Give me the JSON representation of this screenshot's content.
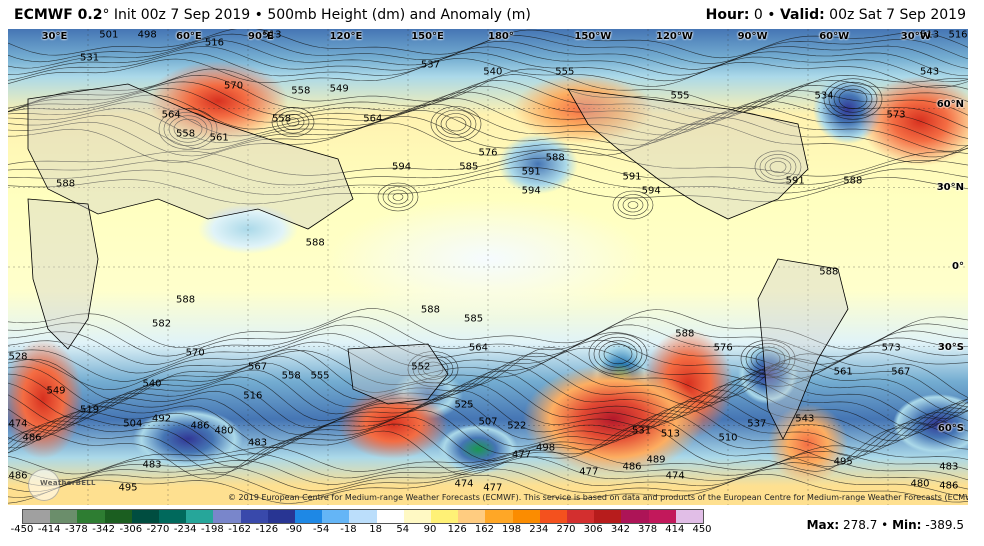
{
  "header": {
    "model": "ECMWF 0.2",
    "degree": "°",
    "init": "Init 00z 7 Sep 2019",
    "bullet": "•",
    "product": "500mb Height (dm) and Anomaly (m)",
    "hour_label": "Hour:",
    "hour_value": "0",
    "valid_label": "Valid:",
    "valid_value": "00z Sat 7 Sep 2019"
  },
  "map": {
    "lon_labels": [
      {
        "text": "30°E",
        "x": 3.5
      },
      {
        "text": "60°E",
        "x": 17.5
      },
      {
        "text": "90°E",
        "x": 25
      },
      {
        "text": "120°E",
        "x": 33.5
      },
      {
        "text": "150°E",
        "x": 42
      },
      {
        "text": "180°",
        "x": 50
      },
      {
        "text": "150°W",
        "x": 59
      },
      {
        "text": "120°W",
        "x": 67.5
      },
      {
        "text": "90°W",
        "x": 76
      },
      {
        "text": "60°W",
        "x": 84.5
      },
      {
        "text": "30°W",
        "x": 93
      }
    ],
    "lat_labels": [
      {
        "text": "60°N",
        "y": 16
      },
      {
        "text": "30°N",
        "y": 33.5
      },
      {
        "text": "0°",
        "y": 50
      },
      {
        "text": "30°S",
        "y": 67
      },
      {
        "text": "60°S",
        "y": 84
      }
    ],
    "contour_labels": [
      {
        "t": "501",
        "x": 10.5,
        "y": 0.5
      },
      {
        "t": "498",
        "x": 14.5,
        "y": 0.5
      },
      {
        "t": "516",
        "x": 21.5,
        "y": 3
      },
      {
        "t": "513",
        "x": 27.5,
        "y": 1
      },
      {
        "t": "531",
        "x": 8.5,
        "y": 6
      },
      {
        "t": "537",
        "x": 44,
        "y": 7.5
      },
      {
        "t": "540",
        "x": 50.5,
        "y": 9
      },
      {
        "t": "555",
        "x": 58,
        "y": 9
      },
      {
        "t": "555",
        "x": 70,
        "y": 14
      },
      {
        "t": "570",
        "x": 23.5,
        "y": 12
      },
      {
        "t": "558",
        "x": 30.5,
        "y": 13
      },
      {
        "t": "549",
        "x": 34.5,
        "y": 12.5
      },
      {
        "t": "564",
        "x": 17,
        "y": 18
      },
      {
        "t": "558",
        "x": 18.5,
        "y": 22
      },
      {
        "t": "561",
        "x": 22,
        "y": 23
      },
      {
        "t": "558",
        "x": 28.5,
        "y": 19
      },
      {
        "t": "564",
        "x": 38,
        "y": 19
      },
      {
        "t": "534",
        "x": 85,
        "y": 14
      },
      {
        "t": "543",
        "x": 96,
        "y": 9
      },
      {
        "t": "573",
        "x": 92.5,
        "y": 18
      },
      {
        "t": "513",
        "x": 96,
        "y": 1
      },
      {
        "t": "516",
        "x": 99,
        "y": 0.5
      },
      {
        "t": "576",
        "x": 50,
        "y": 26
      },
      {
        "t": "585",
        "x": 48,
        "y": 29
      },
      {
        "t": "588",
        "x": 57,
        "y": 27
      },
      {
        "t": "591",
        "x": 54.5,
        "y": 30
      },
      {
        "t": "594",
        "x": 41,
        "y": 29
      },
      {
        "t": "594",
        "x": 54.5,
        "y": 34
      },
      {
        "t": "591",
        "x": 65,
        "y": 31
      },
      {
        "t": "594",
        "x": 67,
        "y": 34
      },
      {
        "t": "591",
        "x": 82,
        "y": 32
      },
      {
        "t": "588",
        "x": 88,
        "y": 32
      },
      {
        "t": "588",
        "x": 6,
        "y": 32.5
      },
      {
        "t": "588",
        "x": 32,
        "y": 45
      },
      {
        "t": "588",
        "x": 18.5,
        "y": 57
      },
      {
        "t": "588",
        "x": 44,
        "y": 59
      },
      {
        "t": "585",
        "x": 48.5,
        "y": 61
      },
      {
        "t": "588",
        "x": 85.5,
        "y": 51
      },
      {
        "t": "588",
        "x": 70.5,
        "y": 64
      },
      {
        "t": "582",
        "x": 16,
        "y": 62
      },
      {
        "t": "570",
        "x": 19.5,
        "y": 68
      },
      {
        "t": "567",
        "x": 26,
        "y": 71
      },
      {
        "t": "558",
        "x": 29.5,
        "y": 73
      },
      {
        "t": "555",
        "x": 32.5,
        "y": 73
      },
      {
        "t": "564",
        "x": 49,
        "y": 67
      },
      {
        "t": "552",
        "x": 43,
        "y": 71
      },
      {
        "t": "576",
        "x": 74.5,
        "y": 67
      },
      {
        "t": "573",
        "x": 92,
        "y": 67
      },
      {
        "t": "561",
        "x": 87,
        "y": 72
      },
      {
        "t": "567",
        "x": 93,
        "y": 72
      },
      {
        "t": "549",
        "x": 5,
        "y": 76
      },
      {
        "t": "540",
        "x": 15,
        "y": 74.5
      },
      {
        "t": "516",
        "x": 25.5,
        "y": 77
      },
      {
        "t": "519",
        "x": 8.5,
        "y": 80
      },
      {
        "t": "504",
        "x": 13,
        "y": 83
      },
      {
        "t": "492",
        "x": 16,
        "y": 82
      },
      {
        "t": "486",
        "x": 20,
        "y": 83.5
      },
      {
        "t": "480",
        "x": 22.5,
        "y": 84.5
      },
      {
        "t": "483",
        "x": 26,
        "y": 87
      },
      {
        "t": "525",
        "x": 47.5,
        "y": 79
      },
      {
        "t": "507",
        "x": 50,
        "y": 82.5
      },
      {
        "t": "522",
        "x": 53,
        "y": 83.5
      },
      {
        "t": "543",
        "x": 83,
        "y": 82
      },
      {
        "t": "537",
        "x": 78,
        "y": 83
      },
      {
        "t": "510",
        "x": 75,
        "y": 86
      },
      {
        "t": "531",
        "x": 66,
        "y": 84.5
      },
      {
        "t": "513",
        "x": 69,
        "y": 85
      },
      {
        "t": "498",
        "x": 56,
        "y": 88
      },
      {
        "t": "477",
        "x": 53.5,
        "y": 89.5
      },
      {
        "t": "477",
        "x": 60.5,
        "y": 93
      },
      {
        "t": "489",
        "x": 67.5,
        "y": 90.5
      },
      {
        "t": "486",
        "x": 65,
        "y": 92
      },
      {
        "t": "474",
        "x": 69.5,
        "y": 94
      },
      {
        "t": "474",
        "x": 47.5,
        "y": 95.5
      },
      {
        "t": "477",
        "x": 50.5,
        "y": 96.5
      },
      {
        "t": "483",
        "x": 15,
        "y": 91.5
      },
      {
        "t": "495",
        "x": 12.5,
        "y": 96.5
      },
      {
        "t": "495",
        "x": 87,
        "y": 91
      },
      {
        "t": "480",
        "x": 95,
        "y": 95.5
      },
      {
        "t": "486",
        "x": 98,
        "y": 96
      },
      {
        "t": "483",
        "x": 98,
        "y": 92
      },
      {
        "t": "474",
        "x": 1,
        "y": 83
      },
      {
        "t": "486",
        "x": 2.5,
        "y": 86
      },
      {
        "t": "486",
        "x": 1,
        "y": 94
      },
      {
        "t": "528",
        "x": 0.5,
        "y": 69
      }
    ],
    "watermark": "WeatherBELL",
    "copyright": "© 2019 European Centre for Medium-range Weather Forecasts (ECMWF). This service is based on data and products of the European Centre for Medium-range Weather Forecasts (ECMWF)."
  },
  "colorbar": {
    "ticks": [
      "-450",
      "-414",
      "-378",
      "-342",
      "-306",
      "-270",
      "-234",
      "-198",
      "-162",
      "-126",
      "-90",
      "-54",
      "-18",
      "18",
      "54",
      "90",
      "126",
      "162",
      "198",
      "234",
      "270",
      "306",
      "342",
      "378",
      "414",
      "450"
    ],
    "colors": [
      "#a0a0a0",
      "#6b8e6b",
      "#2e7d32",
      "#1b5e20",
      "#004d40",
      "#00695c",
      "#26a69a",
      "#7986cb",
      "#3949ab",
      "#283593",
      "#1e88e5",
      "#64b5f6",
      "#bbdefb",
      "#ffffff",
      "#fff9c4",
      "#fff176",
      "#ffcc80",
      "#ffa726",
      "#fb8c00",
      "#f4511e",
      "#d32f2f",
      "#b71c1c",
      "#ad1457",
      "#c2185b",
      "#e1bee7"
    ]
  },
  "stats": {
    "max_label": "Max:",
    "max_value": "278.7",
    "min_label": "Min:",
    "min_value": "-389.5",
    "separator": "•"
  }
}
